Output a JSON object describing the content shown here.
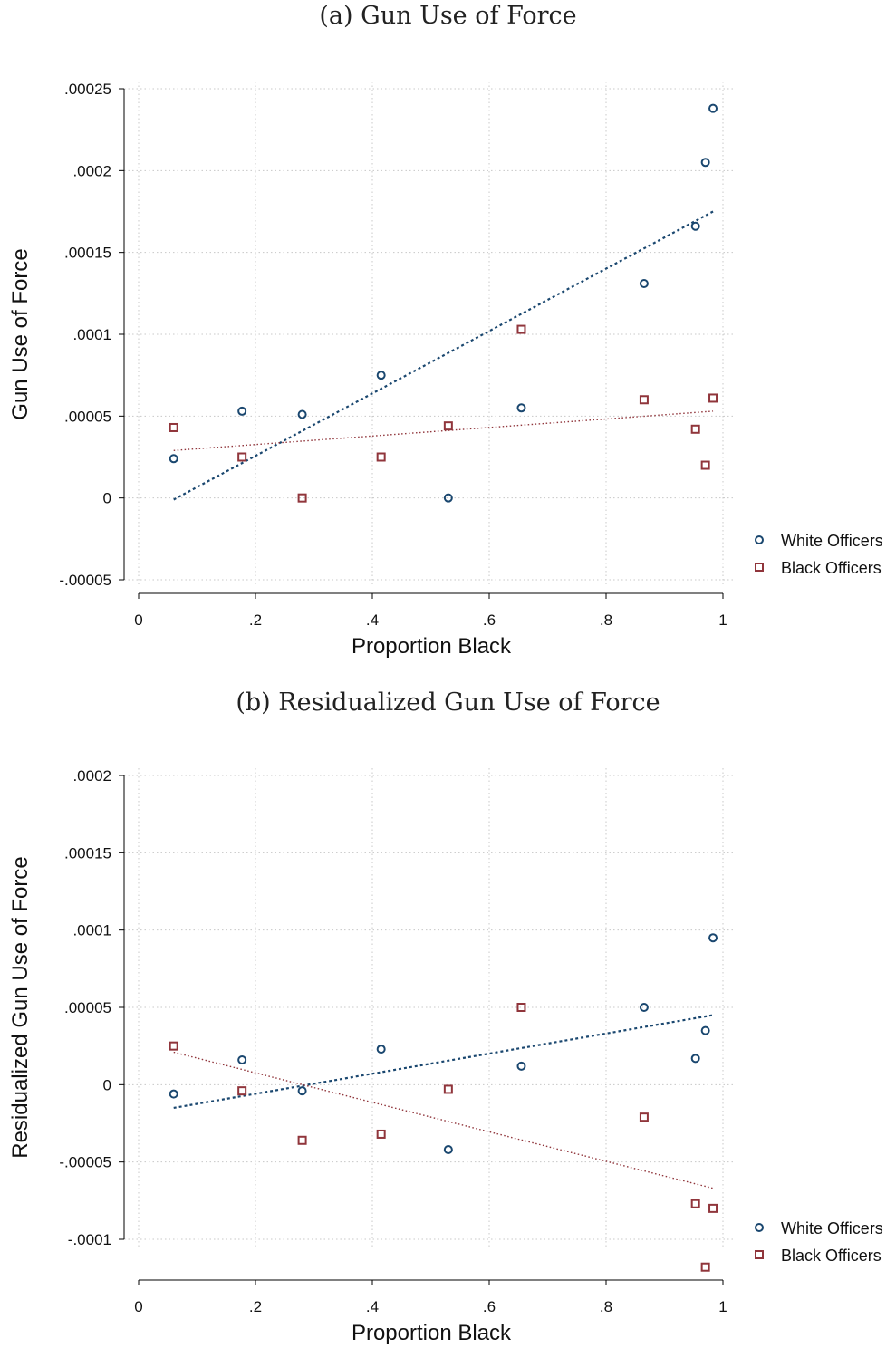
{
  "colors": {
    "white_series": "#1a476f",
    "black_series": "#90353b",
    "grid": "#c8c8c8"
  },
  "chart_data": [
    {
      "type": "scatter",
      "title": "(a) Gun Use of Force",
      "xlabel": "Proportion Black",
      "ylabel": "Gun Use of Force",
      "xlim": [
        0,
        1
      ],
      "ylim": [
        -5e-05,
        0.00025
      ],
      "xticks": [
        0,
        0.2,
        0.4,
        0.6,
        0.8,
        1
      ],
      "xtick_labels": [
        "0",
        ".2",
        ".4",
        ".6",
        ".8",
        "1"
      ],
      "yticks": [
        -5e-05,
        0,
        5e-05,
        0.0001,
        0.00015,
        0.0002,
        0.00025
      ],
      "ytick_labels": [
        "-.00005",
        "0",
        ".00005",
        ".0001",
        ".00015",
        ".0002",
        ".00025"
      ],
      "grid": true,
      "legend_position": "right",
      "series": [
        {
          "name": "White Officers",
          "marker": "circle",
          "x": [
            0.06,
            0.177,
            0.28,
            0.415,
            0.53,
            0.655,
            0.865,
            0.953,
            0.97,
            0.983
          ],
          "y": [
            2.4e-05,
            5.3e-05,
            5.1e-05,
            7.5e-05,
            0.0,
            5.5e-05,
            0.000131,
            0.000166,
            0.000205,
            0.000238
          ],
          "fit": {
            "x": [
              0.06,
              0.983
            ],
            "y": [
              -1e-06,
              0.000175
            ]
          }
        },
        {
          "name": "Black Officers",
          "marker": "square",
          "x": [
            0.06,
            0.177,
            0.28,
            0.415,
            0.53,
            0.655,
            0.865,
            0.953,
            0.97,
            0.983
          ],
          "y": [
            4.3e-05,
            2.5e-05,
            0.0,
            2.5e-05,
            4.4e-05,
            0.000103,
            6e-05,
            4.2e-05,
            2e-05,
            6.1e-05
          ],
          "fit": {
            "x": [
              0.06,
              0.983
            ],
            "y": [
              2.9e-05,
              5.3e-05
            ]
          }
        }
      ]
    },
    {
      "type": "scatter",
      "title": "(b) Residualized Gun Use of Force",
      "xlabel": "Proportion Black",
      "ylabel": "Residualized Gun Use of Force",
      "xlim": [
        0,
        1
      ],
      "ylim": [
        -0.0001,
        0.0002
      ],
      "xticks": [
        0,
        0.2,
        0.4,
        0.6,
        0.8,
        1
      ],
      "xtick_labels": [
        "0",
        ".2",
        ".4",
        ".6",
        ".8",
        "1"
      ],
      "yticks": [
        -0.0001,
        -5e-05,
        0,
        5e-05,
        0.0001,
        0.00015,
        0.0002
      ],
      "ytick_labels": [
        "-.0001",
        "-.00005",
        "0",
        ".00005",
        ".0001",
        ".00015",
        ".0002"
      ],
      "grid": true,
      "legend_position": "right",
      "series": [
        {
          "name": "White Officers",
          "marker": "circle",
          "x": [
            0.06,
            0.177,
            0.28,
            0.415,
            0.53,
            0.655,
            0.865,
            0.953,
            0.97,
            0.983
          ],
          "y": [
            -6e-06,
            1.6e-05,
            -4e-06,
            2.3e-05,
            -4.2e-05,
            1.2e-05,
            5e-05,
            1.7e-05,
            3.5e-05,
            9.5e-05
          ],
          "fit": {
            "x": [
              0.06,
              0.983
            ],
            "y": [
              -1.5e-05,
              4.5e-05
            ]
          }
        },
        {
          "name": "Black Officers",
          "marker": "square",
          "x": [
            0.06,
            0.177,
            0.28,
            0.415,
            0.53,
            0.655,
            0.865,
            0.953,
            0.97,
            0.983
          ],
          "y": [
            2.5e-05,
            -4e-06,
            -3.6e-05,
            -3.2e-05,
            -3e-06,
            5e-05,
            -2.1e-05,
            -7.7e-05,
            -0.000118,
            -8e-05
          ],
          "fit": {
            "x": [
              0.06,
              0.983
            ],
            "y": [
              2.1e-05,
              -6.7e-05
            ]
          }
        }
      ]
    }
  ]
}
